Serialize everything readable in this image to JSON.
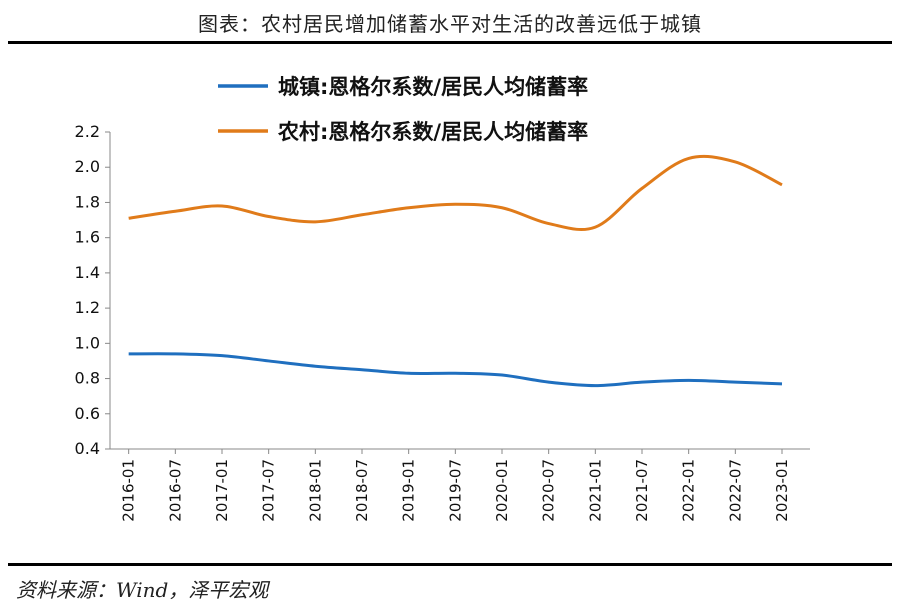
{
  "title": "图表：农村居民增加储蓄水平对生活的改善远低于城镇",
  "source": "资料来源：Wind，泽平宏观",
  "chart_data": {
    "type": "line",
    "x": [
      "2016-01",
      "2016-07",
      "2017-01",
      "2017-07",
      "2018-01",
      "2018-07",
      "2019-01",
      "2019-07",
      "2020-01",
      "2020-07",
      "2021-01",
      "2021-07",
      "2022-01",
      "2022-07",
      "2023-01"
    ],
    "ylim": [
      0.4,
      2.2
    ],
    "yticks": [
      "0.4",
      "0.6",
      "0.8",
      "1.0",
      "1.2",
      "1.4",
      "1.6",
      "1.8",
      "2.0",
      "2.2"
    ],
    "legend_position": "top",
    "grid": false,
    "series": [
      {
        "name": "城镇:恩格尔系数/居民人均储蓄率",
        "color": "#1f6fbf",
        "values": [
          0.94,
          0.94,
          0.93,
          0.9,
          0.87,
          0.85,
          0.83,
          0.83,
          0.82,
          0.78,
          0.76,
          0.78,
          0.79,
          0.78,
          0.77
        ]
      },
      {
        "name": "农村:恩格尔系数/居民人均储蓄率",
        "color": "#e07b1a",
        "values": [
          1.71,
          1.75,
          1.78,
          1.72,
          1.69,
          1.73,
          1.77,
          1.79,
          1.77,
          1.68,
          1.66,
          1.88,
          2.05,
          2.03,
          1.9
        ]
      }
    ]
  }
}
